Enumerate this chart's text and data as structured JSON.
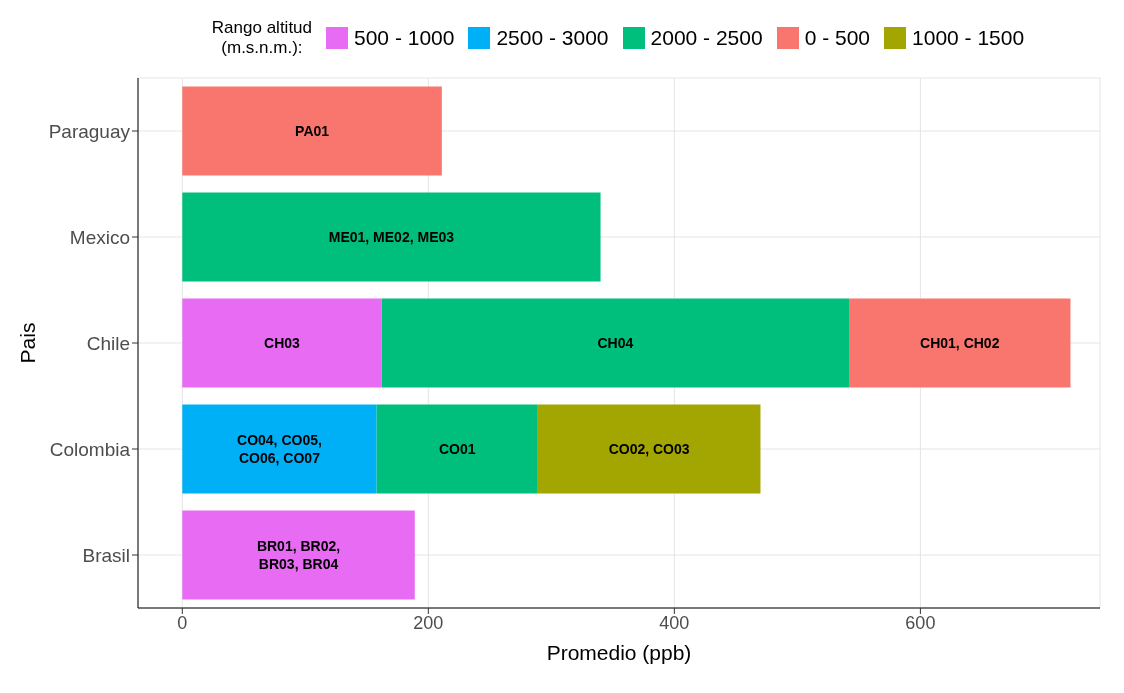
{
  "chart_data": {
    "type": "bar",
    "orientation": "horizontal",
    "stacked": true,
    "legend": "top",
    "legend_title": "Rango altitud\n(m.s.n.m.):",
    "xlabel": "Promedio (ppb)",
    "ylabel": "Pais",
    "categories": [
      "Paraguay",
      "Mexico",
      "Chile",
      "Colombia",
      "Brasil"
    ],
    "xlim": [
      -36,
      746
    ],
    "xticks": [
      0,
      200,
      400,
      600
    ],
    "grid": true,
    "series": [
      {
        "name": "500 - 1000",
        "color": "#e76bf3",
        "values": [
          null,
          null,
          162,
          null,
          189
        ],
        "value_labels": [
          null,
          null,
          "CH03",
          null,
          "BR01, BR02,\nBR03, BR04"
        ]
      },
      {
        "name": "2500 - 3000",
        "color": "#00b0f6",
        "values": [
          null,
          null,
          null,
          158,
          null
        ],
        "value_labels": [
          null,
          null,
          null,
          "CO04, CO05,\nCO06, CO07",
          null
        ]
      },
      {
        "name": "2000 - 2500",
        "color": "#00bf7d",
        "values": [
          null,
          340,
          380,
          131,
          null
        ],
        "value_labels": [
          null,
          "ME01, ME02, ME03",
          "CH04",
          "CO01",
          null
        ]
      },
      {
        "name": "0 - 500",
        "color": "#f8766d",
        "values": [
          211,
          null,
          180,
          null,
          null
        ],
        "value_labels": [
          "PA01",
          null,
          "CH01, CH02",
          null,
          null
        ]
      },
      {
        "name": "1000 - 1500",
        "color": "#a3a500",
        "values": [
          null,
          null,
          null,
          181,
          null
        ],
        "value_labels": [
          null,
          null,
          null,
          "CO02, CO03",
          null
        ]
      }
    ]
  }
}
